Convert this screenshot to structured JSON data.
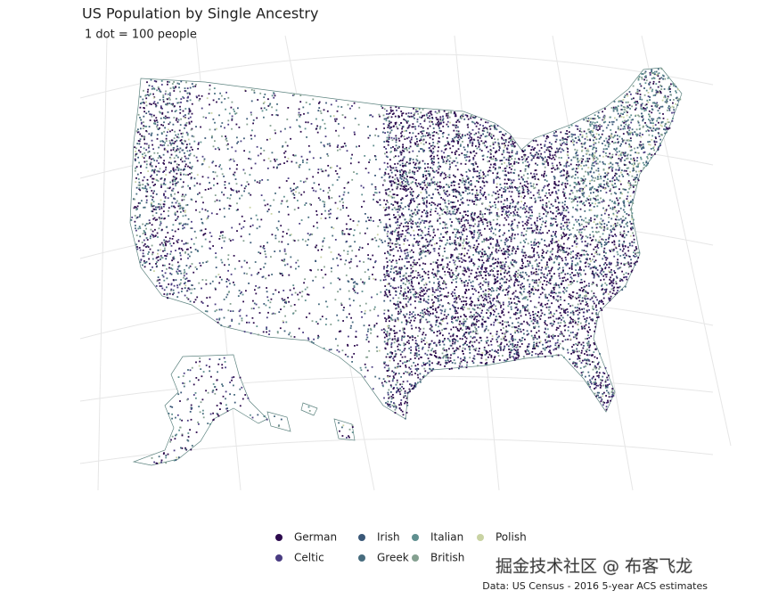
{
  "title": "US Population by Single Ancestry",
  "subtitle": "1 dot = 100 people",
  "legend": {
    "items": [
      {
        "name": "German",
        "color": "#2c0a4d"
      },
      {
        "name": "Celtic",
        "color": "#4a3c82"
      },
      {
        "name": "Irish",
        "color": "#3a5878"
      },
      {
        "name": "Greek",
        "color": "#476c7e"
      },
      {
        "name": "Italian",
        "color": "#5f8f8f"
      },
      {
        "name": "British",
        "color": "#84a090"
      },
      {
        "name": "Polish",
        "color": "#c9d3a3"
      }
    ]
  },
  "caption": "Data: US Census - 2016 5-year ACS estimates",
  "watermark": "掘金技术社区 @ 布客飞龙"
}
